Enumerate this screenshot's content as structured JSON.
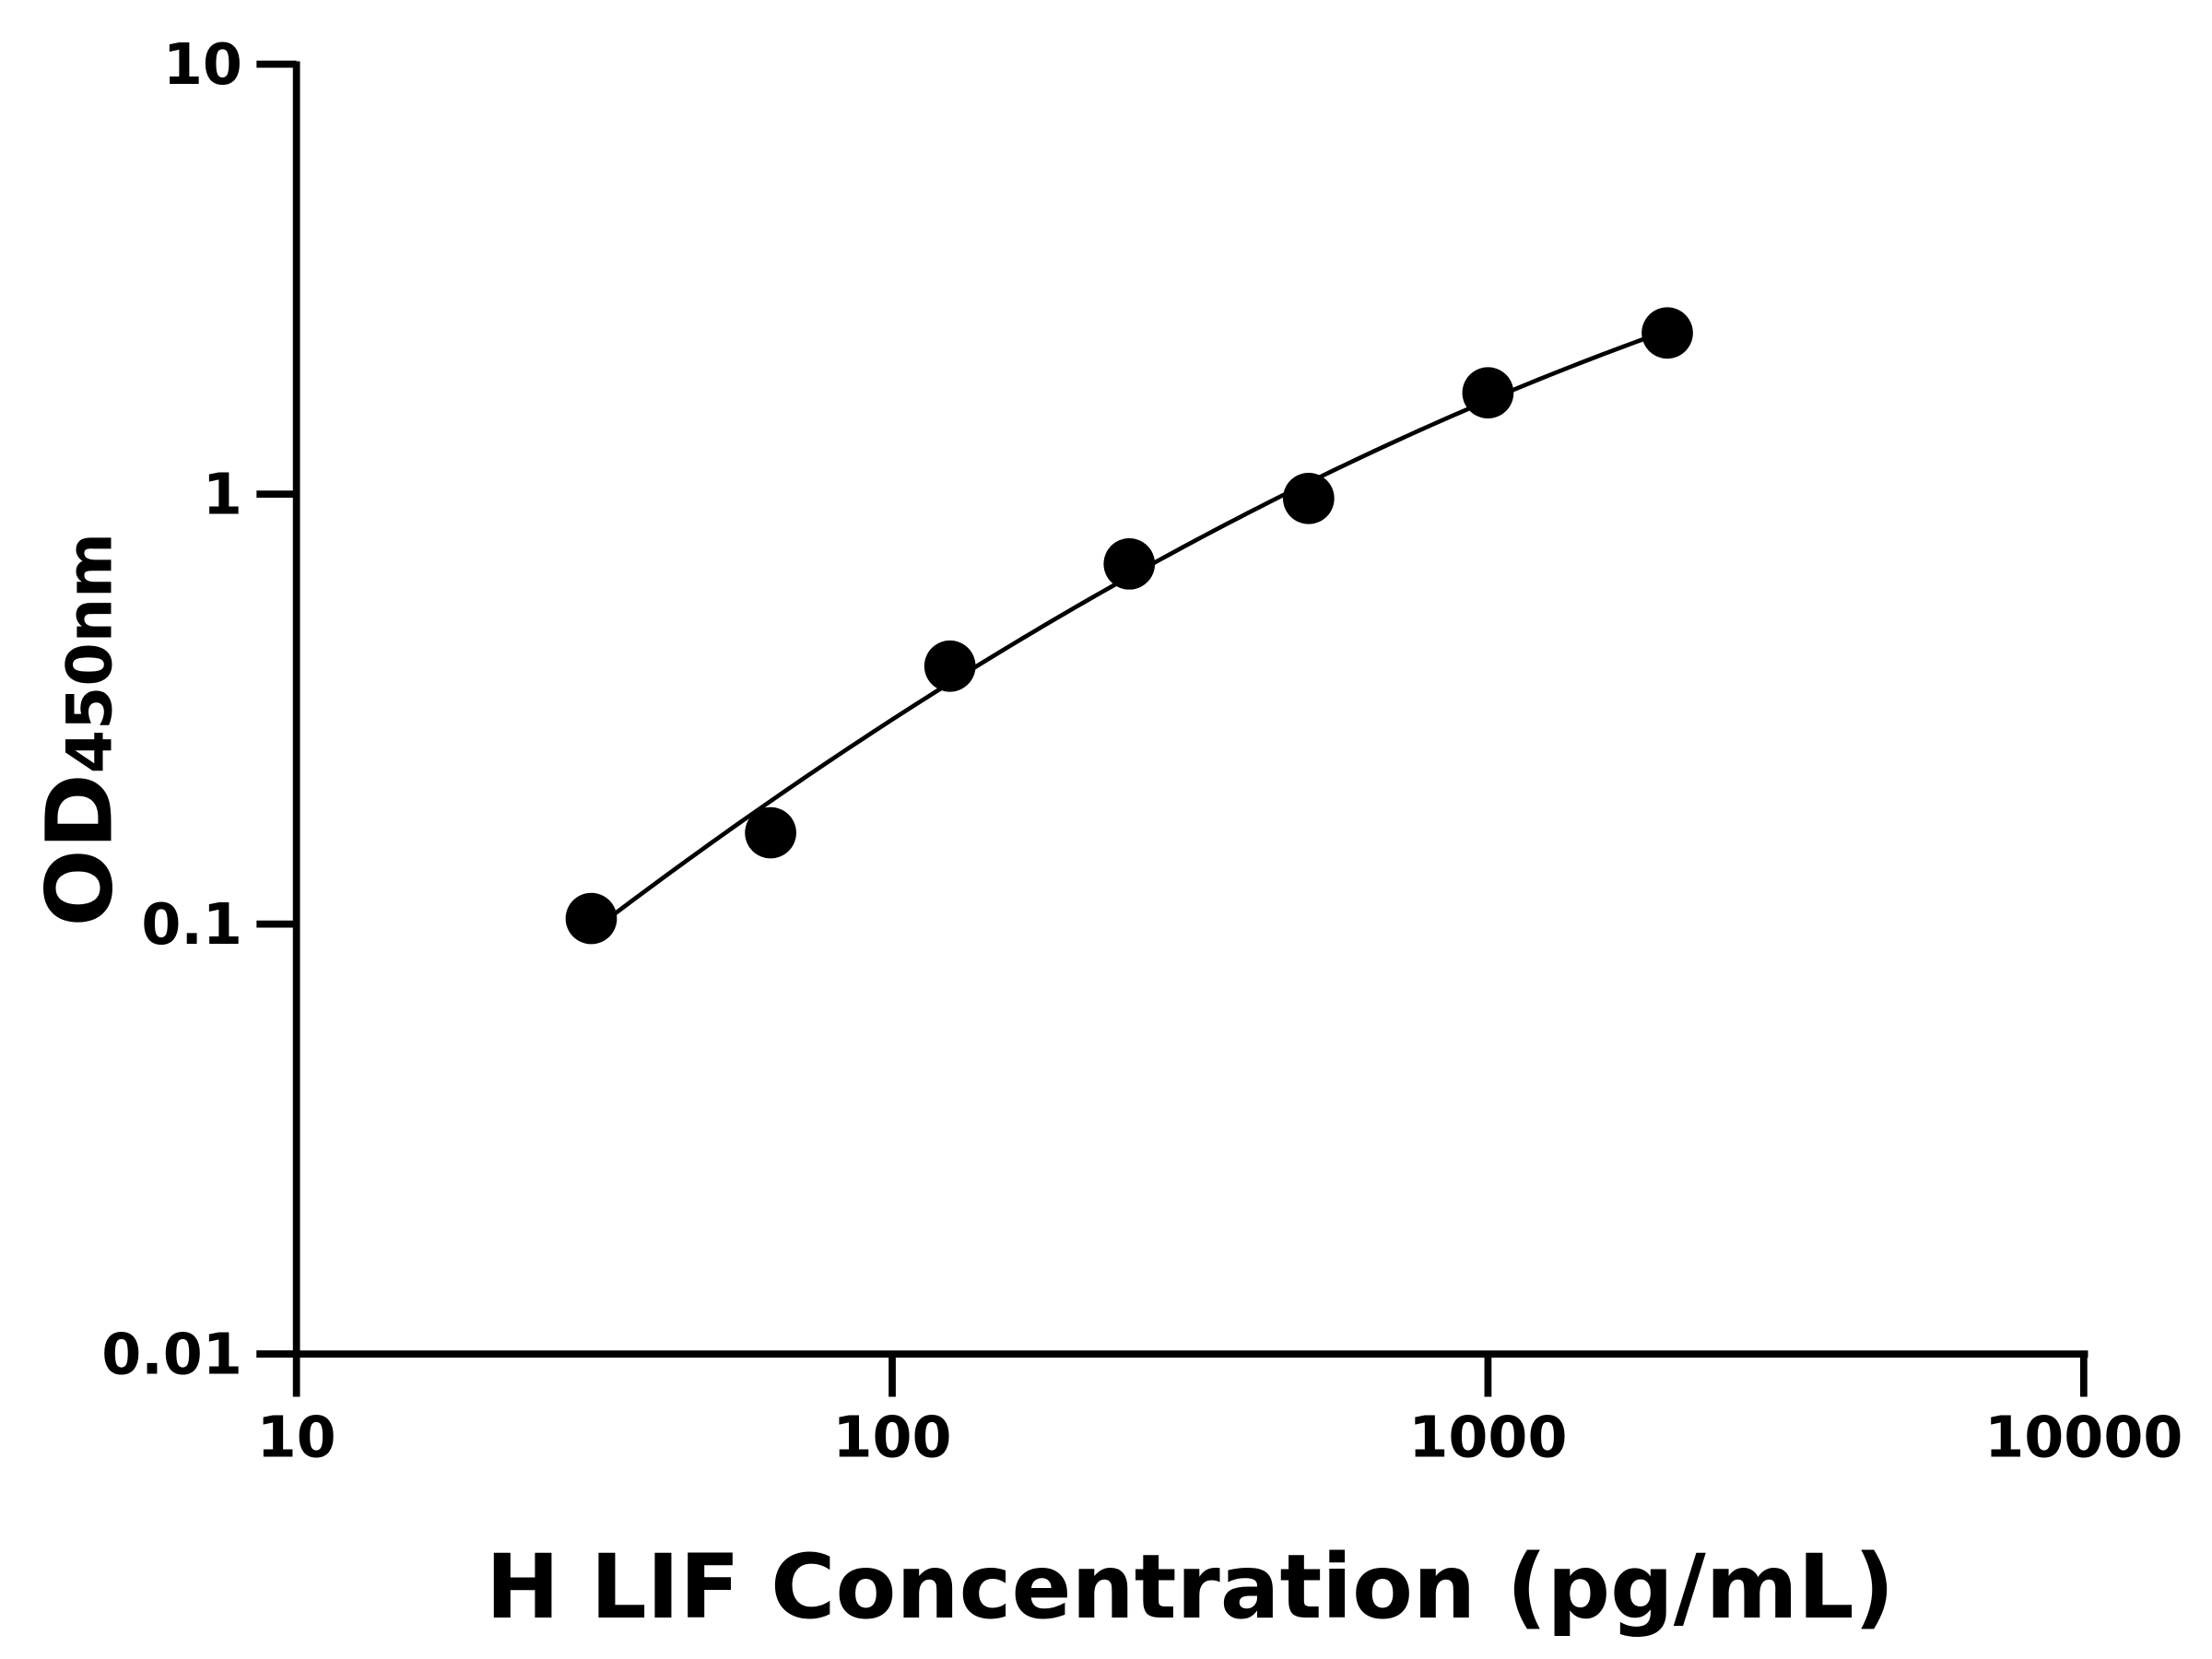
{
  "chart_data": {
    "type": "scatter",
    "title": "",
    "xlabel": "H LIF Concentration (pg/mL)",
    "ylabel_main": "OD",
    "ylabel_sub": "450nm",
    "x_scale": "log",
    "y_scale": "log",
    "xlim": [
      10,
      10000
    ],
    "ylim": [
      0.01,
      10
    ],
    "x_ticks": [
      "10",
      "100",
      "1000",
      "10000"
    ],
    "y_ticks": [
      "0.01",
      "0.1",
      "1",
      "10"
    ],
    "grid": false,
    "legend": "none",
    "fit_curve": true,
    "colors": {
      "points": "#000000",
      "curve": "#000000",
      "axes": "#000000"
    },
    "series": [
      {
        "x": [
          31.25,
          62.5,
          125,
          250,
          500,
          1000,
          2000
        ],
        "y": [
          0.103,
          0.163,
          0.398,
          0.688,
          0.977,
          1.72,
          2.37
        ]
      }
    ]
  }
}
